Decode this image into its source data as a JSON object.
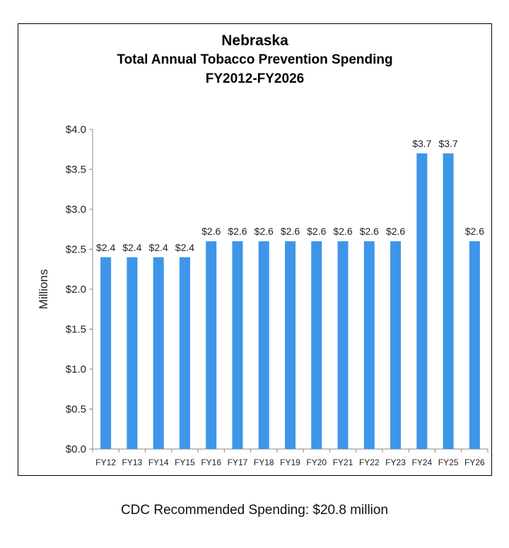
{
  "chart_data": {
    "type": "bar",
    "title": "Nebraska",
    "subtitle": "Total Annual Tobacco Prevention Spending",
    "subtitle2": "FY2012-FY2026",
    "ylabel": "Millions",
    "xlabel": "",
    "ylim": [
      0,
      4.0
    ],
    "yticks": [
      "$0.0",
      "$0.5",
      "$1.0",
      "$1.5",
      "$2.0",
      "$2.5",
      "$3.0",
      "$3.5",
      "$4.0"
    ],
    "categories": [
      "FY12",
      "FY13",
      "FY14",
      "FY15",
      "FY16",
      "FY17",
      "FY18",
      "FY19",
      "FY20",
      "FY21",
      "FY22",
      "FY23",
      "FY24",
      "FY25",
      "FY26"
    ],
    "values": [
      2.4,
      2.4,
      2.4,
      2.4,
      2.6,
      2.6,
      2.6,
      2.6,
      2.6,
      2.6,
      2.6,
      2.6,
      3.7,
      3.7,
      2.6
    ],
    "data_labels": [
      "$2.4",
      "$2.4",
      "$2.4",
      "$2.4",
      "$2.6",
      "$2.6",
      "$2.6",
      "$2.6",
      "$2.6",
      "$2.6",
      "$2.6",
      "$2.6",
      "$3.7",
      "$3.7",
      "$2.6"
    ],
    "grid": false,
    "legend": "none",
    "bar_color": "#3d96e8"
  },
  "footer": "CDC Recommended Spending: $20.8 million"
}
